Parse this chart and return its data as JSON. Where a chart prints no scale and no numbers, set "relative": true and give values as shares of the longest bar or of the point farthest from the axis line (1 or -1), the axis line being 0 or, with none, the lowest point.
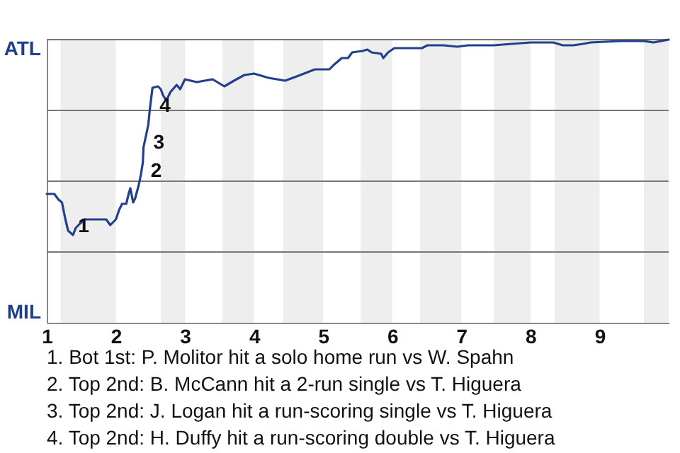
{
  "chart_data": {
    "type": "line",
    "relative": true,
    "xlim": [
      1,
      10
    ],
    "xticks": [
      1,
      2,
      3,
      4,
      5,
      6,
      7,
      8,
      9
    ],
    "ref_lines": [
      {
        "axis": "y",
        "value": 1,
        "label": "ATL",
        "color": "#777777"
      },
      {
        "axis": "y",
        "value": 0.75,
        "color": "#777777"
      },
      {
        "axis": "y",
        "value": 0.5,
        "color": "#777777"
      },
      {
        "axis": "y",
        "value": 0.25,
        "color": "#777777"
      }
    ],
    "bands": [
      {
        "axis": "x",
        "from": 1.2,
        "to": 2,
        "color": "#eeeeee"
      },
      {
        "axis": "x",
        "from": 2.65,
        "to": 3,
        "color": "#eeeeee"
      },
      {
        "axis": "x",
        "from": 3.54,
        "to": 4,
        "color": "#eeeeee"
      },
      {
        "axis": "x",
        "from": 4.42,
        "to": 5,
        "color": "#eeeeee"
      },
      {
        "axis": "x",
        "from": 5.54,
        "to": 6,
        "color": "#eeeeee"
      },
      {
        "axis": "x",
        "from": 6.4,
        "to": 7,
        "color": "#eeeeee"
      },
      {
        "axis": "x",
        "from": 7.47,
        "to": 8,
        "color": "#eeeeee"
      },
      {
        "axis": "x",
        "from": 8.35,
        "to": 9,
        "color": "#eeeeee"
      },
      {
        "axis": "x",
        "from": 9.64,
        "to": 10,
        "color": "#eeeeee"
      }
    ],
    "series": [
      {
        "color": "#23408e",
        "x": [
          1,
          1.11,
          1.17,
          1.22,
          1.27,
          1.31,
          1.38,
          1.42,
          1.48,
          1.55,
          1.86,
          1.92,
          2,
          2.05,
          2.09,
          2.15,
          2.19,
          2.21,
          2.25,
          2.28,
          2.33,
          2.36,
          2.39,
          2.4,
          2.44,
          2.47,
          2.49,
          2.53,
          2.61,
          2.65,
          2.68,
          2.73,
          2.79,
          2.88,
          2.93,
          3,
          3.17,
          3.4,
          3.57,
          3.71,
          3.86,
          4,
          4.21,
          4.45,
          4.67,
          4.88,
          5.09,
          5.15,
          5.27,
          5.36,
          5.42,
          5.57,
          5.64,
          5.7,
          5.84,
          5.87,
          5.94,
          6.03,
          6.43,
          6.51,
          6.74,
          6.94,
          7.1,
          7.47,
          7.73,
          8,
          8.33,
          8.47,
          8.62,
          8.76,
          8.87,
          9.29,
          9.64,
          9.78,
          9.89,
          10
        ],
        "values": [
          0.455,
          0.455,
          0.435,
          0.425,
          0.365,
          0.325,
          0.31,
          0.335,
          0.35,
          0.365,
          0.365,
          0.345,
          0.365,
          0.4,
          0.42,
          0.42,
          0.46,
          0.475,
          0.425,
          0.44,
          0.485,
          0.52,
          0.565,
          0.62,
          0.665,
          0.7,
          0.75,
          0.83,
          0.835,
          0.825,
          0.805,
          0.785,
          0.815,
          0.84,
          0.825,
          0.86,
          0.85,
          0.86,
          0.835,
          0.855,
          0.875,
          0.88,
          0.865,
          0.855,
          0.875,
          0.895,
          0.895,
          0.91,
          0.935,
          0.935,
          0.955,
          0.96,
          0.965,
          0.955,
          0.95,
          0.935,
          0.955,
          0.97,
          0.97,
          0.98,
          0.98,
          0.975,
          0.98,
          0.98,
          0.985,
          0.99,
          0.99,
          0.98,
          0.98,
          0.985,
          0.99,
          0.995,
          0.995,
          0.99,
          0.995,
          1
        ]
      }
    ],
    "annotations": [
      {
        "text": "1",
        "x": 1.31,
        "y": 0.325
      },
      {
        "text": "2",
        "x": 2.36,
        "y": 0.52
      },
      {
        "text": "3",
        "x": 2.4,
        "y": 0.62
      },
      {
        "text": "4",
        "x": 2.49,
        "y": 0.75
      },
      "MIL",
      "1. Bot 1st: P. Molitor hit a solo home run vs W. Spahn",
      "2. Top 2nd: B. McCann hit a 2-run single vs T. Higuera",
      "3. Top 2nd: J. Logan hit a run-scoring single vs T. Higuera",
      "4. Top 2nd: H. Duffy hit a run-scoring double vs T. Higuera"
    ]
  }
}
